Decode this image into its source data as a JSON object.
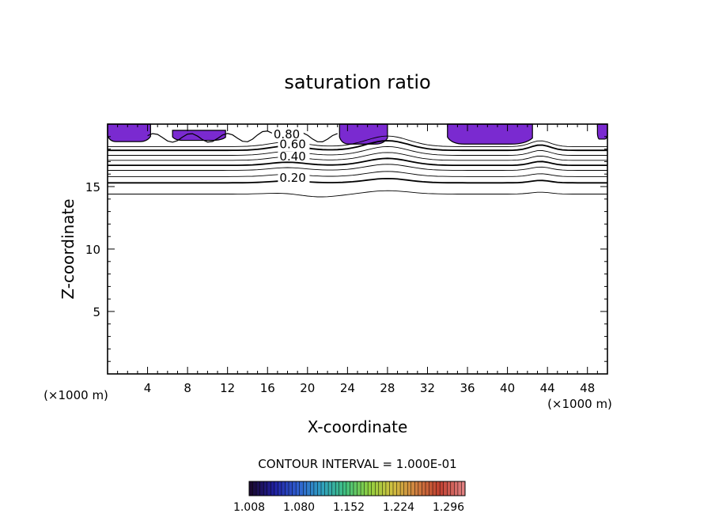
{
  "chart_data": {
    "type": "contour",
    "title": "saturation ratio",
    "xlabel": "X-coordinate",
    "ylabel": "Z-coordinate",
    "x_unit_left": "(×1000 m)",
    "x_unit_right": "(×1000 m)",
    "xlim": [
      0,
      50
    ],
    "ylim": [
      0,
      20
    ],
    "x_ticks": [
      4,
      8,
      12,
      16,
      20,
      24,
      28,
      32,
      36,
      40,
      44,
      48
    ],
    "y_ticks": [
      5,
      10,
      15
    ],
    "contour_interval_label": "CONTOUR INTERVAL = 1.000E-01",
    "contour_labels": [
      {
        "text": "0.80",
        "x": 16.6,
        "z": 19.0
      },
      {
        "text": "0.60",
        "x": 17.2,
        "z": 18.2
      },
      {
        "text": "0.40",
        "x": 17.2,
        "z": 17.2
      },
      {
        "text": "0.20",
        "x": 17.2,
        "z": 15.5
      }
    ],
    "colorbar": {
      "min": 1.008,
      "max": 1.32,
      "tick_labels": [
        "1.008",
        "1.080",
        "1.152",
        "1.224",
        "1.296"
      ],
      "colors": [
        "#1a0830",
        "#2020a0",
        "#3060d0",
        "#30a0c0",
        "#40c080",
        "#90d040",
        "#d0c040",
        "#d08040",
        "#c04030",
        "#e08080"
      ]
    },
    "shaded_color": "#7a2ad0",
    "supersaturated_regions": [
      {
        "x0": 0.0,
        "x1": 4.3,
        "ztop": 20.0,
        "zbottom": 18.6
      },
      {
        "x0": 6.5,
        "x1": 11.8,
        "ztop": 19.5,
        "zbottom": 18.7
      },
      {
        "x0": 23.2,
        "x1": 28.0,
        "ztop": 20.0,
        "zbottom": 18.4
      },
      {
        "x0": 34.0,
        "x1": 42.5,
        "ztop": 20.0,
        "zbottom": 18.4
      },
      {
        "x0": 49.0,
        "x1": 50.0,
        "ztop": 20.0,
        "zbottom": 18.8
      }
    ]
  }
}
